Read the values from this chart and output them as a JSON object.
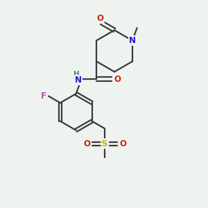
{
  "bg_color": "#eff3ef",
  "atom_colors": {
    "C": "#3a3a3a",
    "N": "#1a1ad4",
    "O": "#d42010",
    "F": "#cc44bb",
    "S": "#c8b410",
    "H": "#508080"
  },
  "bond_color": "#3a3a3a",
  "bond_lw": 1.6
}
